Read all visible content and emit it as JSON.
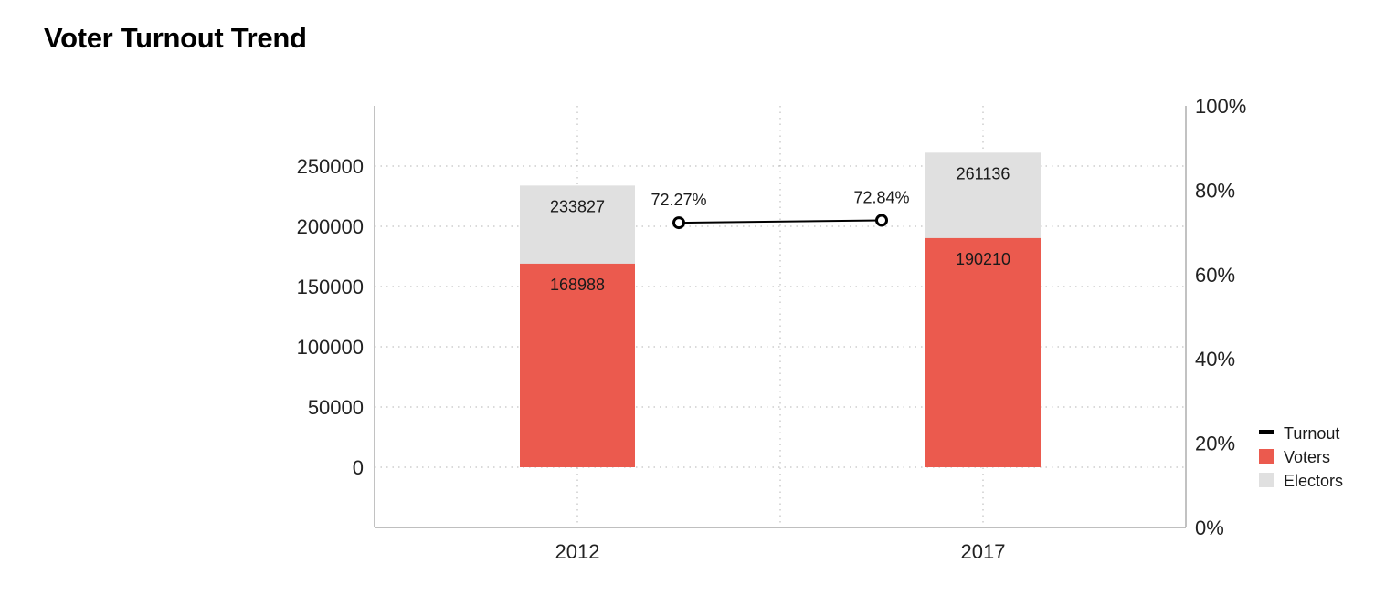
{
  "title": "Voter Turnout Trend",
  "chart_data": {
    "type": "bar",
    "stacked_overlay": true,
    "categories": [
      "2012",
      "2017"
    ],
    "series": [
      {
        "name": "Electors",
        "kind": "bar",
        "axis": "left",
        "color": "#e0e0e0",
        "values": [
          233827,
          261136
        ]
      },
      {
        "name": "Voters",
        "kind": "bar",
        "axis": "left",
        "color": "#eb5a4e",
        "values": [
          168988,
          190210
        ]
      },
      {
        "name": "Turnout",
        "kind": "line",
        "axis": "right",
        "color": "#000000",
        "values": [
          72.27,
          72.84
        ],
        "labels": [
          "72.27%",
          "72.84%"
        ]
      }
    ],
    "y_left": {
      "min": -50000,
      "max": 300000,
      "ticks": [
        0,
        50000,
        100000,
        150000,
        200000,
        250000
      ],
      "tick_labels": [
        "0",
        "50000",
        "100000",
        "150000",
        "200000",
        "250000"
      ]
    },
    "y_right": {
      "min": 0,
      "max": 100,
      "ticks": [
        0,
        20,
        40,
        60,
        80,
        100
      ],
      "tick_labels": [
        "0%",
        "20%",
        "40%",
        "60%",
        "80%",
        "100%"
      ]
    },
    "grid": true,
    "legend": {
      "position": "right",
      "items": [
        {
          "label": "Turnout",
          "color": "#000000",
          "shape": "line"
        },
        {
          "label": "Voters",
          "color": "#eb5a4e",
          "shape": "square"
        },
        {
          "label": "Electors",
          "color": "#e0e0e0",
          "shape": "square"
        }
      ]
    }
  }
}
